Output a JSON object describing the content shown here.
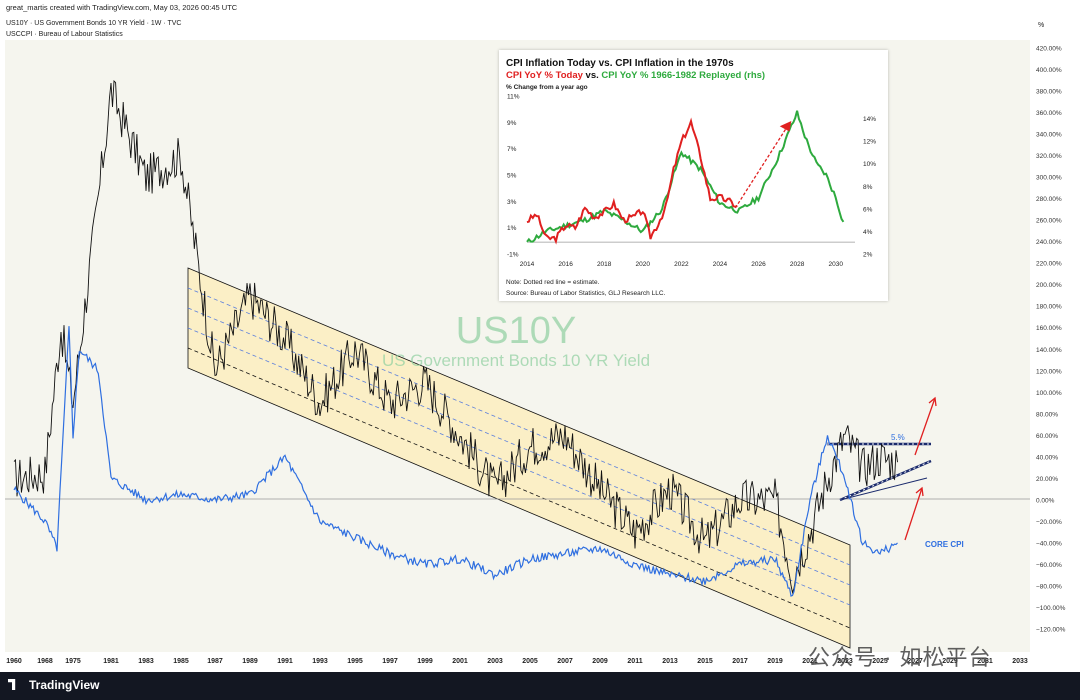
{
  "header": {
    "created_by": "great_martis created with TradingView.com, May 03, 2026 00:45 UTC",
    "legend_1": "US10Y · US Government Bonds 10 YR Yield · 1W · TVC",
    "legend_2": "USCCPI · Bureau of Labour Statistics"
  },
  "footer": {
    "logo_text": "TradingView"
  },
  "watermark": "公众号 · 如松平台",
  "colors": {
    "yield_line": "#111111",
    "cpi_line": "#2f6fe0",
    "channel_fill": "#fbefc6",
    "red_arrow": "#e02020",
    "inset_red": "#e02020",
    "inset_green": "#2eaa3e"
  },
  "chart_data": [
    {
      "type": "line",
      "title": "US10Y",
      "subtitle": "US Government Bonds 10 YR Yield",
      "y_axis_unit": "%",
      "y_scale": "percent change",
      "ylim": [
        -130,
        430
      ],
      "y_ticks": [
        "420.00%",
        "400.00%",
        "380.00%",
        "360.00%",
        "340.00%",
        "320.00%",
        "300.00%",
        "280.00%",
        "260.00%",
        "240.00%",
        "220.00%",
        "200.00%",
        "180.00%",
        "160.00%",
        "140.00%",
        "120.00%",
        "100.00%",
        "80.00%",
        "60.00%",
        "40.00%",
        "20.00%",
        "0.00%",
        "−20.00%",
        "−40.00%",
        "−60.00%",
        "−80.00%",
        "−100.00%",
        "−120.00%"
      ],
      "x_ticks": [
        "1960",
        "1968",
        "1975",
        "1981",
        "1983",
        "1985",
        "1987",
        "1989",
        "1991",
        "1993",
        "1995",
        "1997",
        "1999",
        "2001",
        "2003",
        "2005",
        "2007",
        "2009",
        "2011",
        "2013",
        "2015",
        "2017",
        "2019",
        "2021",
        "2023",
        "2025",
        "2027",
        "2029",
        "2031",
        "2033"
      ],
      "series": [
        {
          "name": "US10Y",
          "x": [
            "1960",
            "1968",
            "1972",
            "1975",
            "1979",
            "1981",
            "1983",
            "1985",
            "1987",
            "1989",
            "1991",
            "1993",
            "1995",
            "1997",
            "1999",
            "2001",
            "2003",
            "2005",
            "2007",
            "2009",
            "2011",
            "2013",
            "2015",
            "2017",
            "2019",
            "2020",
            "2021",
            "2022",
            "2023",
            "2024",
            "2025",
            "2026"
          ],
          "y": [
            20,
            25,
            160,
            90,
            280,
            380,
            300,
            320,
            120,
            190,
            150,
            90,
            140,
            90,
            110,
            60,
            10,
            50,
            60,
            10,
            -30,
            10,
            -40,
            0,
            0,
            -70,
            -30,
            20,
            60,
            30,
            40,
            35
          ]
        },
        {
          "name": "CORE CPI",
          "x": [
            "1960",
            "1968",
            "1971",
            "1974",
            "1975",
            "1976",
            "1979",
            "1981",
            "1983",
            "1985",
            "1987",
            "1989",
            "1991",
            "1993",
            "1995",
            "1997",
            "1999",
            "2001",
            "2003",
            "2005",
            "2007",
            "2009",
            "2011",
            "2013",
            "2015",
            "2017",
            "2019",
            "2020",
            "2021",
            "2022",
            "2023",
            "2024",
            "2025",
            "2026"
          ],
          "y": [
            10,
            -20,
            -45,
            160,
            60,
            140,
            120,
            20,
            0,
            5,
            0,
            5,
            40,
            -20,
            -35,
            -50,
            -60,
            -55,
            -70,
            -55,
            -50,
            -45,
            -60,
            -70,
            -75,
            -60,
            -55,
            -90,
            0,
            60,
            20,
            -40,
            -50,
            -40
          ]
        }
      ],
      "annotations": [
        "5.%",
        "CORE CPI"
      ]
    },
    {
      "type": "line",
      "title": "CPI Inflation Today vs. CPI Inflation in the 1970s",
      "subtitle_parts": [
        "CPI YoY % Today",
        "vs.",
        "CPI YoY % 1966-1982 Replayed (rhs)"
      ],
      "ylabel": "% Change from a year ago",
      "y_ticks_left": [
        "11%",
        "9%",
        "7%",
        "5%",
        "3%",
        "1%",
        "-1%"
      ],
      "y_ticks_right": [
        "14%",
        "12%",
        "10%",
        "8%",
        "6%",
        "4%",
        "2%"
      ],
      "x_ticks": [
        "2014",
        "2016",
        "2018",
        "2020",
        "2022",
        "2024",
        "2026",
        "2028",
        "2030"
      ],
      "series": [
        {
          "name": "CPI YoY % Today",
          "x": [
            2014.0,
            2014.5,
            2015.0,
            2015.5,
            2016.0,
            2016.5,
            2017.0,
            2017.5,
            2018.0,
            2018.5,
            2019.0,
            2019.5,
            2020.0,
            2020.4,
            2020.8,
            2021.2,
            2021.6,
            2022.0,
            2022.5,
            2023.0,
            2023.5,
            2024.0,
            2024.5,
            2025.0
          ],
          "y": [
            1.5,
            2.0,
            0.2,
            0.2,
            1.2,
            1.0,
            2.5,
            1.8,
            2.2,
            2.8,
            1.6,
            1.8,
            2.3,
            0.3,
            1.3,
            2.6,
            5.4,
            7.5,
            9.0,
            6.4,
            3.2,
            3.3,
            3.0,
            2.5
          ]
        },
        {
          "name": "CPI YoY % 1966-1982 Replayed (rhs)",
          "x": [
            2014.0,
            2015.0,
            2016.0,
            2017.0,
            2018.0,
            2019.0,
            2020.0,
            2021.0,
            2022.0,
            2023.0,
            2024.0,
            2025.0,
            2026.0,
            2027.0,
            2028.0,
            2028.5,
            2029.0,
            2029.5,
            2030.0,
            2030.5
          ],
          "y": [
            3.0,
            4.0,
            4.5,
            5.0,
            5.8,
            5.0,
            4.0,
            6.0,
            11.0,
            9.5,
            6.5,
            5.8,
            7.0,
            10.5,
            14.5,
            12.0,
            10.0,
            9.0,
            7.0,
            4.2
          ]
        }
      ],
      "note": "Note: Dotted red line = estimate.",
      "source": "Source: Bureau of Labor Statistics, GLJ Research LLC."
    }
  ]
}
